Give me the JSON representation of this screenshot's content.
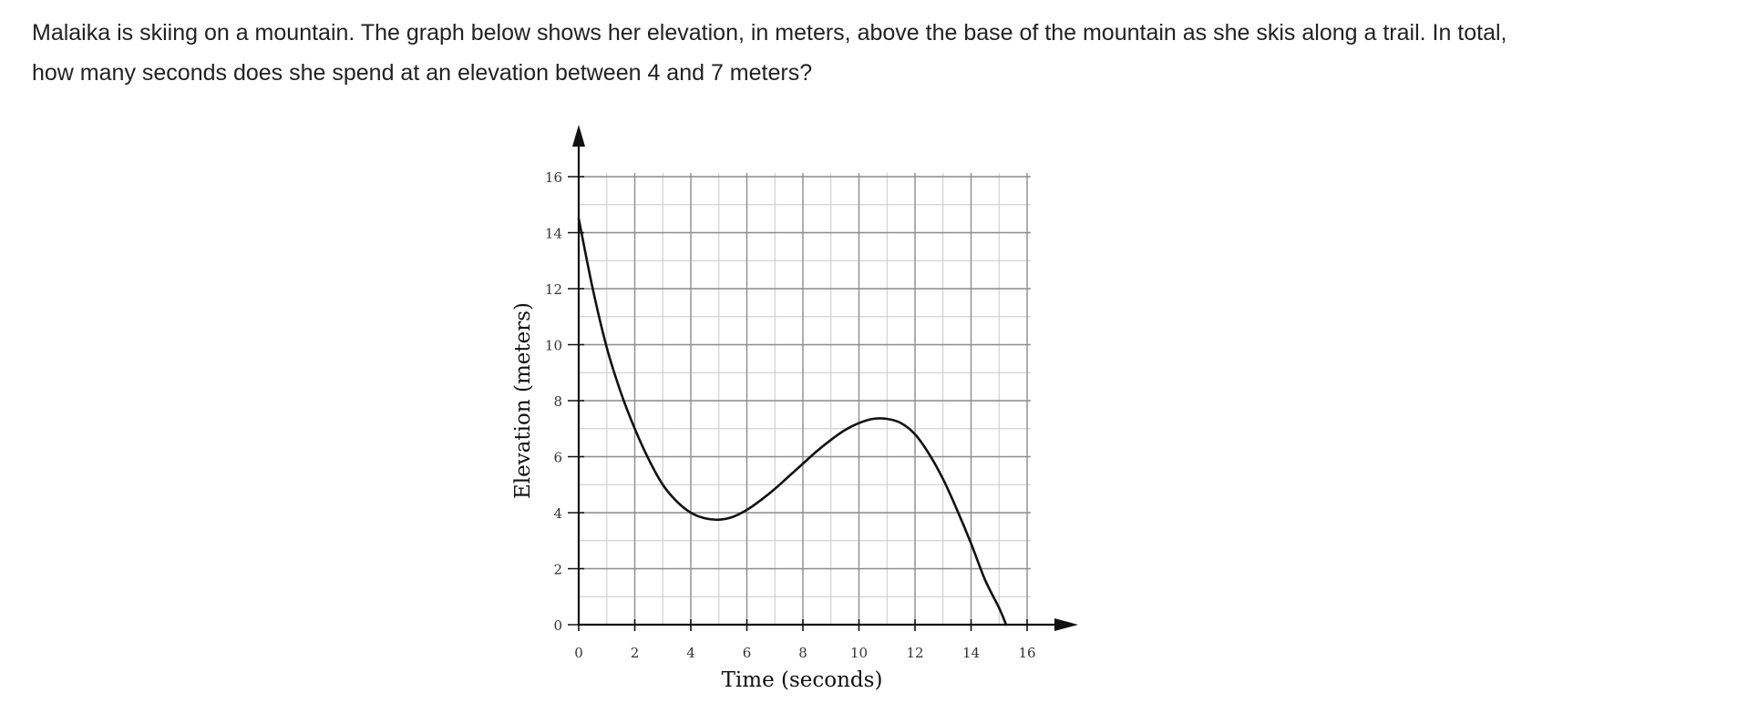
{
  "question": {
    "line1": "Malaika is skiing on a mountain. The graph below shows her elevation, in meters, above the base of the mountain as she skis along a trail. In total,",
    "line2": "how many seconds does she spend at an elevation between 4 and 7 meters?"
  },
  "chart_data": {
    "type": "line",
    "title": "",
    "xlabel": "Time (seconds)",
    "ylabel": "Elevation (meters)",
    "xlim": [
      0,
      16
    ],
    "ylim": [
      0,
      16
    ],
    "x_ticks": [
      0,
      2,
      4,
      6,
      8,
      10,
      12,
      14,
      16
    ],
    "y_ticks": [
      0,
      2,
      4,
      6,
      8,
      10,
      12,
      14,
      16
    ],
    "grid": true,
    "minor_grid_step": 1,
    "series": [
      {
        "x": [
          0,
          0.5,
          1,
          1.5,
          2,
          2.5,
          3,
          3.5,
          4,
          4.5,
          5,
          5.5,
          6,
          6.5,
          7,
          7.5,
          8,
          8.5,
          9,
          9.5,
          10,
          10.5,
          11,
          11.5,
          12,
          12.5,
          13,
          13.5,
          14,
          14.5,
          15,
          15.25
        ],
        "y": [
          14.5,
          12,
          9.9,
          8.3,
          7,
          5.9,
          5,
          4.4,
          4,
          3.8,
          3.75,
          3.85,
          4.1,
          4.45,
          4.85,
          5.3,
          5.75,
          6.2,
          6.6,
          6.95,
          7.2,
          7.35,
          7.35,
          7.2,
          6.8,
          6.1,
          5.2,
          4.1,
          2.9,
          1.6,
          0.6,
          0
        ]
      }
    ]
  }
}
